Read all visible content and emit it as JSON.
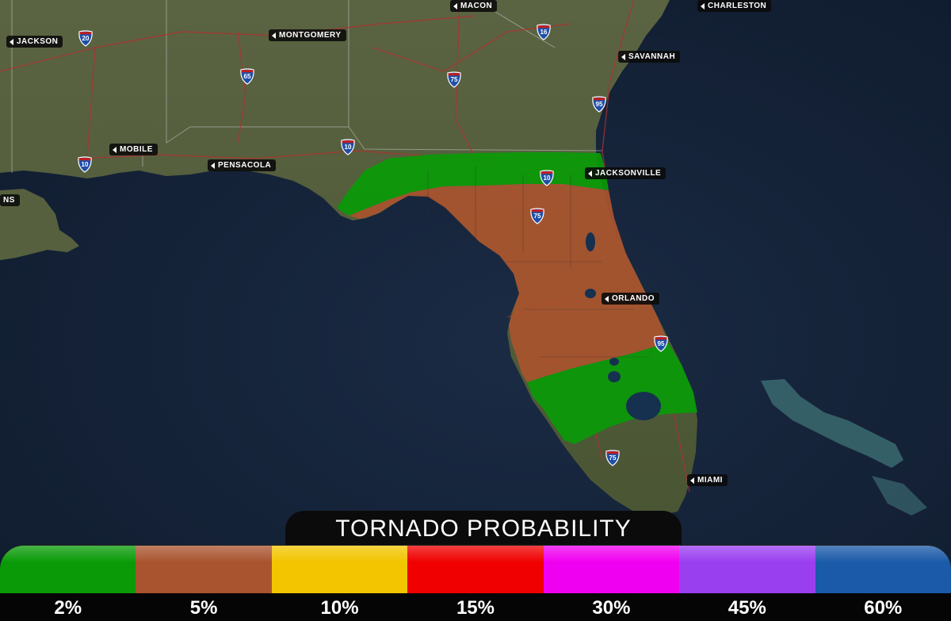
{
  "cities": [
    {
      "id": "jackson",
      "label": "JACKSON"
    },
    {
      "id": "montgomery",
      "label": "MONTGOMERY"
    },
    {
      "id": "macon",
      "label": "MACON"
    },
    {
      "id": "charleston",
      "label": "CHARLESTON"
    },
    {
      "id": "savannah",
      "label": "SAVANNAH"
    },
    {
      "id": "mobile",
      "label": "MOBILE"
    },
    {
      "id": "pensacola",
      "label": "PENSACOLA"
    },
    {
      "id": "jacksonville",
      "label": "JACKSONVILLE"
    },
    {
      "id": "orlando",
      "label": "ORLANDO"
    },
    {
      "id": "miami",
      "label": "MIAMI"
    },
    {
      "id": "new-orleans",
      "label": "NS"
    }
  ],
  "interstates": [
    "20",
    "16",
    "65",
    "75",
    "95",
    "10",
    "10",
    "10",
    "75",
    "95",
    "75"
  ],
  "legend": {
    "title": "TORNADO PROBABILITY",
    "items": [
      {
        "label": "2%",
        "color": "#0a9a08"
      },
      {
        "label": "5%",
        "color": "#a9542f"
      },
      {
        "label": "10%",
        "color": "#f2c500"
      },
      {
        "label": "15%",
        "color": "#f00000"
      },
      {
        "label": "30%",
        "color": "#f000f0"
      },
      {
        "label": "45%",
        "color": "#9a3ff0"
      },
      {
        "label": "60%",
        "color": "#1a5aa8"
      }
    ]
  },
  "colors": {
    "ocean": "#14233a",
    "land": "#4f5a37",
    "risk_2": "#0a9a08",
    "risk_5": "#a9542f"
  }
}
